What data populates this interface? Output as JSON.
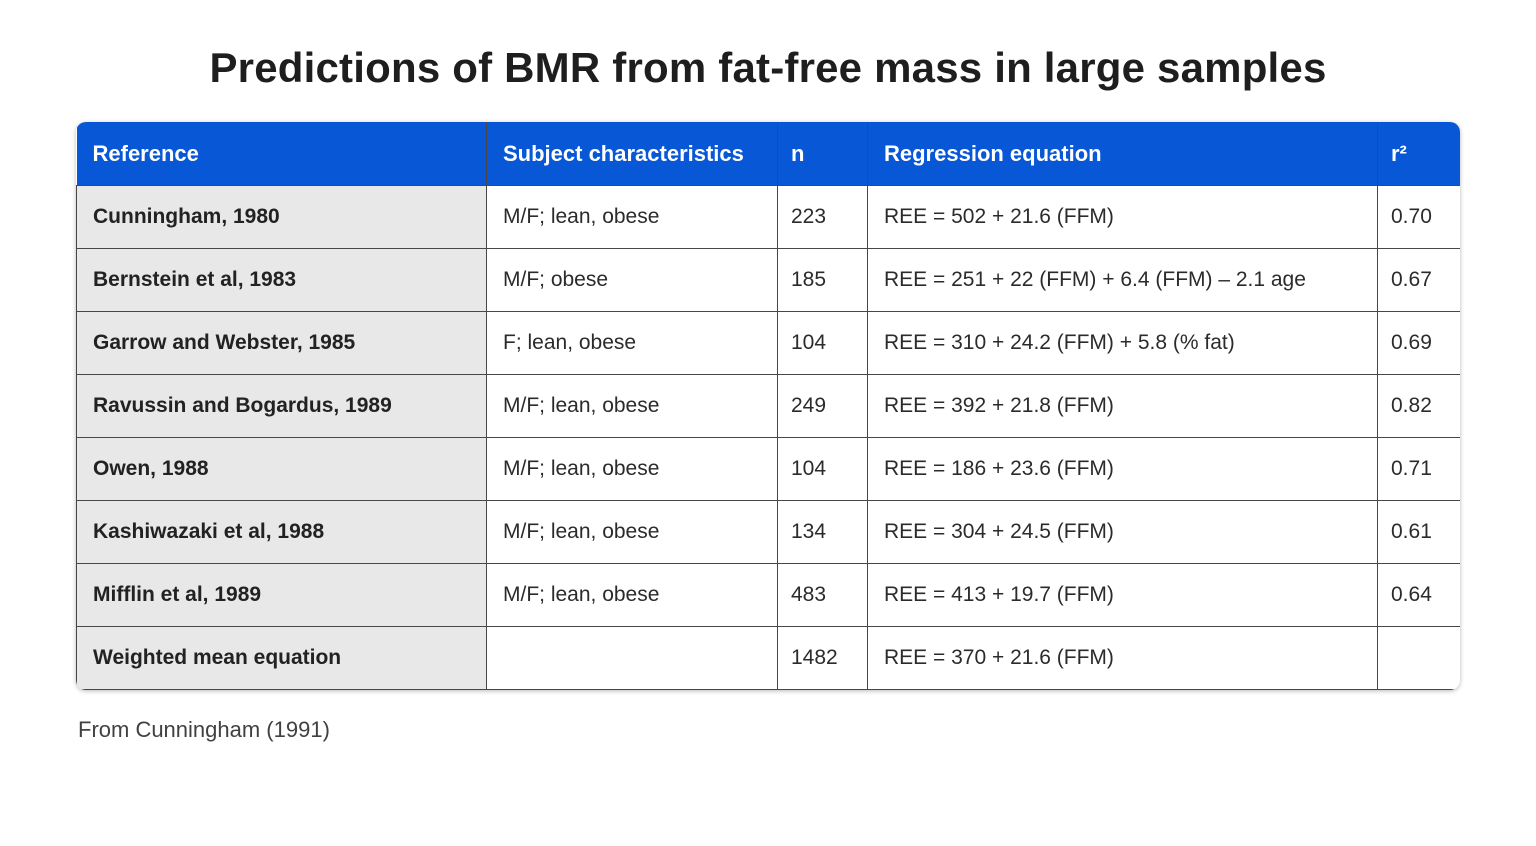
{
  "title": "Predictions of BMR from fat-free mass in large samples",
  "source_note": "From Cunningham (1991)",
  "colors": {
    "header_bg": "#0857d6",
    "header_text": "#ffffff",
    "row_label_bg": "#e8e8e8",
    "border": "#474747",
    "body_text": "#2b2b2b",
    "title_text": "#1e1e1e"
  },
  "chart_data": {
    "type": "table",
    "title": "Predictions of BMR from fat-free mass in large samples",
    "columns": [
      "Reference",
      "Subject characteristics",
      "n",
      "Regression equation",
      "r²"
    ],
    "rows": [
      [
        "Cunningham, 1980",
        "M/F; lean, obese",
        "223",
        "REE = 502 + 21.6 (FFM)",
        "0.70"
      ],
      [
        "Bernstein et al, 1983",
        "M/F; obese",
        "185",
        "REE = 251 + 22 (FFM) + 6.4 (FFM) – 2.1 age",
        "0.67"
      ],
      [
        "Garrow and Webster, 1985",
        "F; lean, obese",
        "104",
        "REE = 310 + 24.2 (FFM) + 5.8 (% fat)",
        "0.69"
      ],
      [
        "Ravussin and Bogardus, 1989",
        "M/F; lean, obese",
        "249",
        "REE = 392 + 21.8 (FFM)",
        "0.82"
      ],
      [
        "Owen, 1988",
        "M/F; lean, obese",
        "104",
        "REE = 186 + 23.6 (FFM)",
        "0.71"
      ],
      [
        "Kashiwazaki et al, 1988",
        "M/F; lean, obese",
        "134",
        "REE = 304 + 24.5 (FFM)",
        "0.61"
      ],
      [
        "Mifflin et al, 1989",
        "M/F; lean, obese",
        "483",
        "REE = 413 + 19.7 (FFM)",
        "0.64"
      ],
      [
        "Weighted mean equation",
        "",
        "1482",
        "REE = 370 + 21.6 (FFM)",
        ""
      ]
    ]
  }
}
